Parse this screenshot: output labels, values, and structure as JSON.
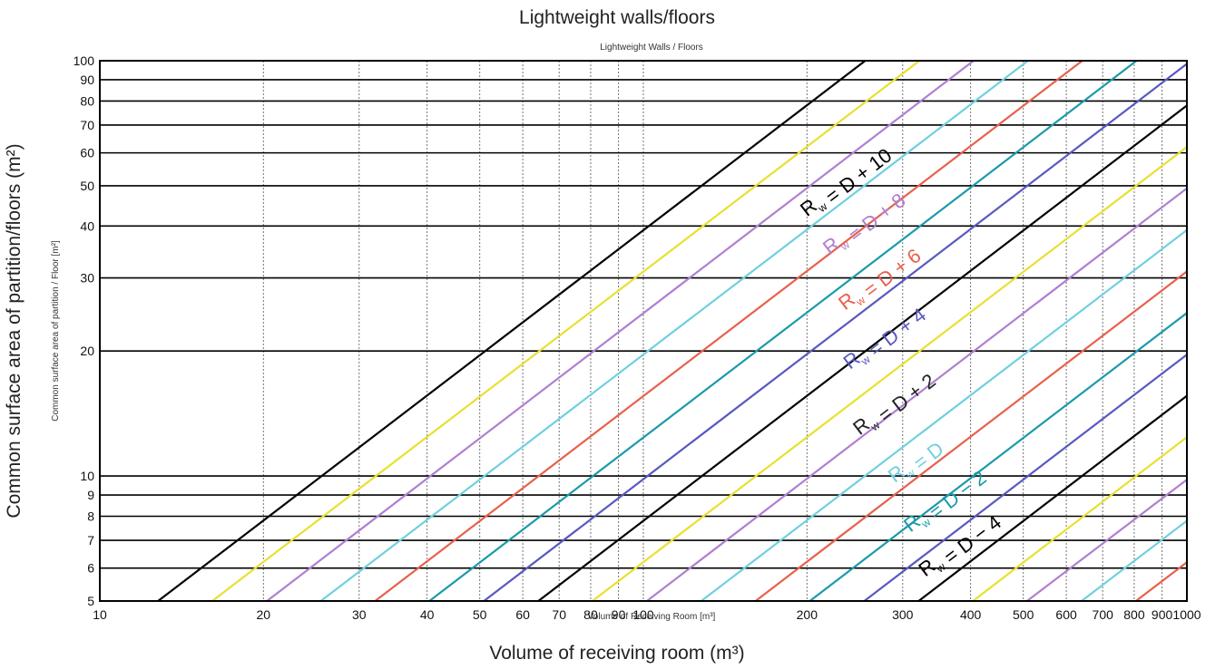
{
  "chart_data": {
    "type": "line",
    "title": "Lightweight walls/floors",
    "inner_title": "Lightweight Walls / Floors",
    "xlabel": "Volume of receiving room (m³)",
    "inner_xlabel": "Volume of Receiving Room [m³]",
    "ylabel": "Common surface area of partition/floors (m²)",
    "inner_ylabel": "Common surface area of partition / Floor [m²]",
    "xscale": "log",
    "yscale": "log",
    "xlim": [
      10,
      1000
    ],
    "ylim": [
      5,
      100
    ],
    "grid": true,
    "x_ticks": [
      10,
      20,
      30,
      40,
      50,
      60,
      70,
      80,
      90,
      100,
      200,
      300,
      400,
      500,
      600,
      700,
      800,
      900,
      1000
    ],
    "y_ticks": [
      5,
      6,
      7,
      8,
      9,
      10,
      20,
      30,
      40,
      50,
      60,
      70,
      80,
      90,
      100
    ],
    "series": [
      {
        "color": "#000000",
        "values": [
          [
            12.8,
            5
          ],
          [
            256,
            100
          ]
        ]
      },
      {
        "color": "#e8e030",
        "values": [
          [
            16.1,
            5
          ],
          [
            322,
            100
          ]
        ]
      },
      {
        "color": "#b07fd0",
        "values": [
          [
            20.3,
            5
          ],
          [
            405,
            100
          ]
        ]
      },
      {
        "color": "#70d0e0",
        "values": [
          [
            25.5,
            5
          ],
          [
            510,
            100
          ]
        ]
      },
      {
        "color": "#e8604c",
        "values": [
          [
            32.1,
            5
          ],
          [
            642,
            100
          ]
        ]
      },
      {
        "color": "#1a9aaa",
        "values": [
          [
            40.4,
            5
          ],
          [
            808,
            100
          ]
        ]
      },
      {
        "color": "#5858c0",
        "values": [
          [
            50.9,
            5
          ],
          [
            1000,
            98.3
          ]
        ]
      },
      {
        "color": "#000000",
        "values": [
          [
            64.1,
            5
          ],
          [
            1000,
            78
          ]
        ]
      },
      {
        "color": "#e8e030",
        "values": [
          [
            80.6,
            5
          ],
          [
            1000,
            62
          ]
        ]
      },
      {
        "color": "#b07fd0",
        "values": [
          [
            101.5,
            5
          ],
          [
            1000,
            49.3
          ]
        ]
      },
      {
        "color": "#70d0e0",
        "values": [
          [
            127.8,
            5
          ],
          [
            1000,
            39.1
          ]
        ]
      },
      {
        "color": "#e8604c",
        "values": [
          [
            160.9,
            5
          ],
          [
            1000,
            31.1
          ]
        ]
      },
      {
        "color": "#1a9aaa",
        "values": [
          [
            202.5,
            5
          ],
          [
            1000,
            24.7
          ]
        ]
      },
      {
        "color": "#5858c0",
        "values": [
          [
            255,
            5
          ],
          [
            1000,
            19.6
          ]
        ]
      },
      {
        "color": "#000000",
        "values": [
          [
            321,
            5
          ],
          [
            1000,
            15.6
          ]
        ]
      },
      {
        "color": "#e8e030",
        "values": [
          [
            404,
            5
          ],
          [
            1000,
            12.4
          ]
        ]
      },
      {
        "color": "#b07fd0",
        "values": [
          [
            508,
            5
          ],
          [
            1000,
            9.8
          ]
        ]
      },
      {
        "color": "#70d0e0",
        "values": [
          [
            640,
            5
          ],
          [
            1000,
            7.8
          ]
        ]
      },
      {
        "color": "#e8604c",
        "values": [
          [
            806,
            5
          ],
          [
            1000,
            6.2
          ]
        ]
      }
    ],
    "annotations": [
      {
        "sub": "",
        "value": "+ 10",
        "color": "#000000",
        "x": 200,
        "y": 42
      },
      {
        "sub": "",
        "value": "+ 8",
        "color": "#b07fd0",
        "x": 220,
        "y": 34
      },
      {
        "sub": "",
        "value": "+ 6",
        "color": "#e8604c",
        "x": 235,
        "y": 25
      },
      {
        "sub": "",
        "value": "+ 4",
        "color": "#5858c0",
        "x": 240,
        "y": 18
      },
      {
        "sub": "",
        "value": "+ 2",
        "color": "#222222",
        "x": 250,
        "y": 12.5
      },
      {
        "sub": "",
        "value": "",
        "color": "#70d0e0",
        "x": 290,
        "y": 9.6
      },
      {
        "sub": "",
        "value": "− 2",
        "color": "#1a9aaa",
        "x": 310,
        "y": 7.3
      },
      {
        "sub": "",
        "value": "− 4",
        "color": "#000000",
        "x": 330,
        "y": 5.7
      }
    ]
  }
}
